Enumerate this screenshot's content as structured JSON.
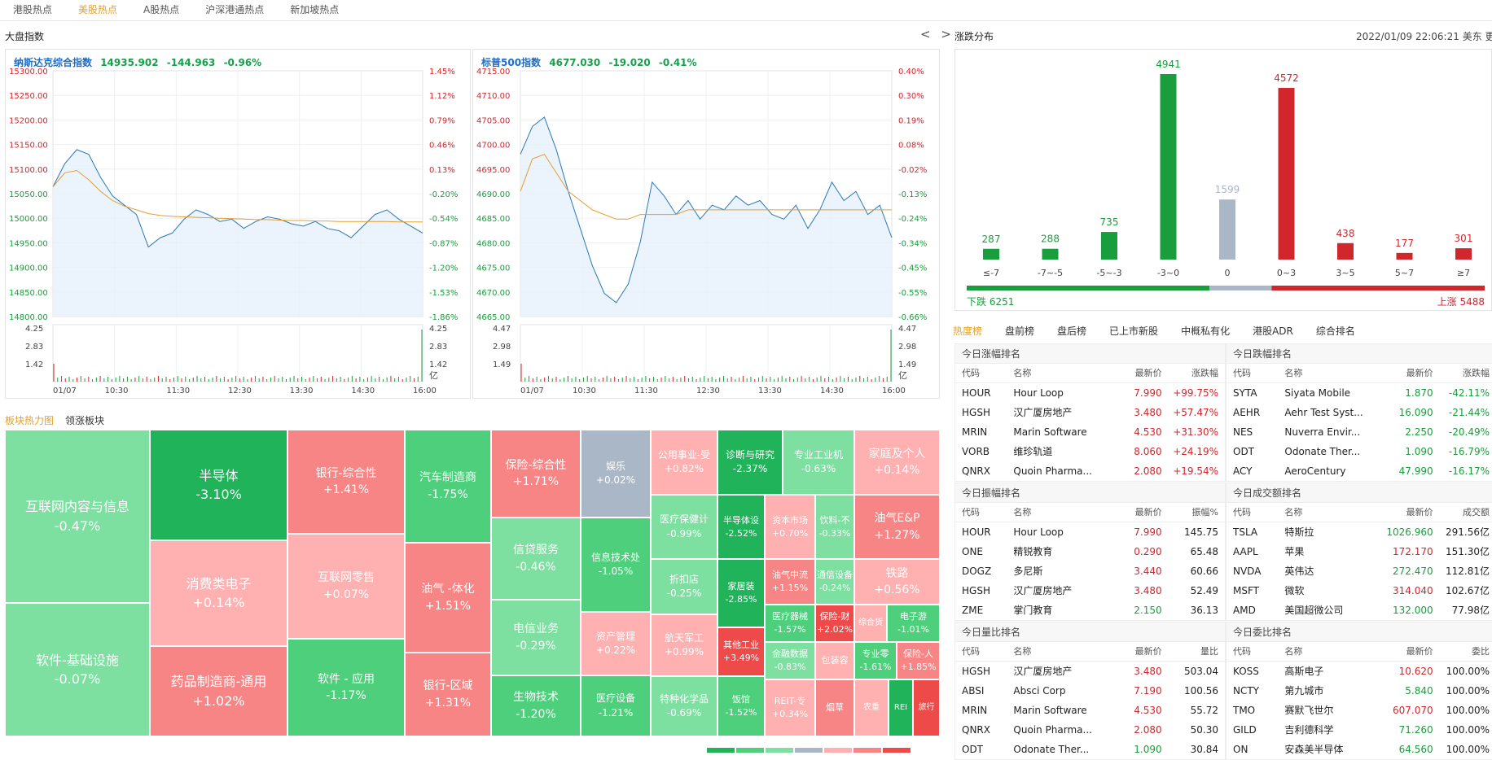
{
  "topnav": {
    "tabs": [
      "港股热点",
      "美股热点",
      "A股热点",
      "沪深港通热点",
      "新加坡热点"
    ],
    "active": 1
  },
  "index_panel": {
    "title": "大盘指数",
    "arrows": "< >"
  },
  "charts": [
    {
      "name": "纳斯达克综合指数",
      "value": "14935.902",
      "change": "-144.963",
      "pct": "-0.96%",
      "y_ticks": [
        "15300.00",
        "15250.00",
        "15200.00",
        "15150.00",
        "15100.00",
        "15050.00",
        "15000.00",
        "14950.00",
        "14900.00",
        "14850.00",
        "14800.00"
      ],
      "pct_ticks": [
        "1.45%",
        "1.12%",
        "0.79%",
        "0.46%",
        "0.13%",
        "-0.20%",
        "-0.54%",
        "-0.87%",
        "-1.20%",
        "-1.53%",
        "-1.86%"
      ],
      "vol_ticks": [
        "4.25",
        "2.83",
        "1.42"
      ],
      "vol_unit": "亿",
      "x_ticks": [
        "01/07",
        "10:30",
        "11:30",
        "12:30",
        "13:30",
        "14:30",
        "16:00"
      ],
      "ylim": [
        14780,
        15310
      ],
      "price": [
        15060,
        15110,
        15140,
        15130,
        15080,
        15040,
        15020,
        15000,
        14930,
        14950,
        14960,
        14990,
        15010,
        15000,
        14985,
        14990,
        14970,
        14985,
        14995,
        14990,
        14980,
        14975,
        14985,
        14970,
        14965,
        14950,
        14975,
        15000,
        15010,
        14990,
        14975,
        14960
      ],
      "avg": [
        15060,
        15090,
        15095,
        15075,
        15050,
        15030,
        15018,
        15010,
        15002,
        14998,
        14996,
        14995,
        14994,
        14993,
        14992,
        14991,
        14990,
        14989,
        14989,
        14988,
        14987,
        14987,
        14986,
        14986,
        14985,
        14985,
        14985,
        14985,
        14985,
        14984,
        14984,
        14984
      ]
    },
    {
      "name": "标普500指数",
      "value": "4677.030",
      "change": "-19.020",
      "pct": "-0.41%",
      "y_ticks": [
        "4715.00",
        "4710.00",
        "4705.00",
        "4700.00",
        "4695.00",
        "4690.00",
        "4685.00",
        "4680.00",
        "4675.00",
        "4670.00",
        "4665.00"
      ],
      "pct_ticks": [
        "0.40%",
        "0.30%",
        "0.19%",
        "0.08%",
        "-0.02%",
        "-0.13%",
        "-0.24%",
        "-0.34%",
        "-0.45%",
        "-0.55%",
        "-0.66%"
      ],
      "vol_ticks": [
        "4.47",
        "2.98",
        "1.49"
      ],
      "vol_unit": "亿",
      "x_ticks": [
        "01/07",
        "10:30",
        "11:30",
        "12:30",
        "13:30",
        "14:30",
        "16:00"
      ],
      "ylim": [
        4663,
        4716
      ],
      "price": [
        4698,
        4704,
        4706,
        4699,
        4690,
        4682,
        4674,
        4668,
        4666,
        4670,
        4679,
        4692,
        4689,
        4685,
        4688,
        4684,
        4687,
        4686,
        4689,
        4687,
        4688,
        4685,
        4684,
        4687,
        4682,
        4686,
        4692,
        4688,
        4690,
        4685,
        4687,
        4680
      ],
      "avg": [
        4690,
        4697,
        4698,
        4694,
        4690,
        4688,
        4686,
        4685,
        4684,
        4684,
        4685,
        4685,
        4685,
        4685,
        4686,
        4686,
        4686,
        4686,
        4686,
        4686,
        4686,
        4686,
        4686,
        4686,
        4686,
        4686,
        4686,
        4686,
        4686,
        4686,
        4686,
        4686
      ]
    }
  ],
  "dist": {
    "title": "涨跌分布",
    "time": "2022/01/09 22:06:21 美东 更新",
    "chart_data": {
      "type": "bar",
      "categories": [
        "≤-7",
        "-7~-5",
        "-5~-3",
        "-3~0",
        "0",
        "0~3",
        "3~5",
        "5~7",
        "≥7"
      ],
      "values": [
        287,
        288,
        735,
        4941,
        1599,
        4572,
        438,
        177,
        301
      ]
    },
    "down_label": "下跌 6251",
    "up_label": "上涨 5488",
    "down_count": 6251,
    "flat_count": 1599,
    "up_count": 5488
  },
  "rank_tabs": {
    "tabs": [
      "热度榜",
      "盘前榜",
      "盘后榜",
      "已上市新股",
      "中概私有化",
      "港股ADR",
      "综合排名"
    ],
    "active": 0
  },
  "tables": [
    {
      "title": "今日涨幅排名",
      "cols": [
        "代码",
        "名称",
        "最新价",
        "涨跌幅"
      ],
      "rows": [
        [
          "HOUR",
          "Hour Loop",
          "7.990",
          "+99.75%"
        ],
        [
          "HGSH",
          "汉广厦房地产",
          "3.480",
          "+57.47%"
        ],
        [
          "MRIN",
          "Marin Software",
          "4.530",
          "+31.30%"
        ],
        [
          "VORB",
          "维珍轨道",
          "8.060",
          "+24.19%"
        ],
        [
          "QNRX",
          "Quoin Pharma...",
          "2.080",
          "+19.54%"
        ]
      ],
      "price_color": "up",
      "last_color": "up"
    },
    {
      "title": "今日跌幅排名",
      "cols": [
        "代码",
        "名称",
        "最新价",
        "涨跌幅"
      ],
      "rows": [
        [
          "SYTA",
          "Siyata Mobile",
          "1.870",
          "-42.11%"
        ],
        [
          "AEHR",
          "Aehr Test Syst...",
          "16.090",
          "-21.44%"
        ],
        [
          "NES",
          "Nuverra Envir...",
          "2.250",
          "-20.49%"
        ],
        [
          "ODT",
          "Odonate Ther...",
          "1.090",
          "-16.79%"
        ],
        [
          "ACY",
          "AeroCentury",
          "47.990",
          "-16.17%"
        ]
      ],
      "price_color": "dn",
      "last_color": "dn"
    },
    {
      "title": "今日振幅排名",
      "cols": [
        "代码",
        "名称",
        "最新价",
        "振幅%"
      ],
      "rows": [
        [
          "HOUR",
          "Hour Loop",
          "7.990",
          "145.75"
        ],
        [
          "ONE",
          "精锐教育",
          "0.290",
          "65.48"
        ],
        [
          "DOGZ",
          "多尼斯",
          "3.440",
          "60.66"
        ],
        [
          "HGSH",
          "汉广厦房地产",
          "3.480",
          "52.49"
        ],
        [
          "ZME",
          "掌门教育",
          "2.150",
          "36.13"
        ]
      ],
      "price_colors": [
        "up",
        "up",
        "up",
        "up",
        "dn"
      ],
      "last_color": ""
    },
    {
      "title": "今日成交额排名",
      "cols": [
        "代码",
        "名称",
        "最新价",
        "成交额"
      ],
      "rows": [
        [
          "TSLA",
          "特斯拉",
          "1026.960",
          "291.56亿"
        ],
        [
          "AAPL",
          "苹果",
          "172.170",
          "151.30亿"
        ],
        [
          "NVDA",
          "英伟达",
          "272.470",
          "112.81亿"
        ],
        [
          "MSFT",
          "微软",
          "314.040",
          "102.67亿"
        ],
        [
          "AMD",
          "美国超微公司",
          "132.000",
          "77.98亿"
        ]
      ],
      "price_colors": [
        "dn",
        "up",
        "dn",
        "up",
        "dn"
      ],
      "last_color": ""
    },
    {
      "title": "今日量比排名",
      "cols": [
        "代码",
        "名称",
        "最新价",
        "量比"
      ],
      "rows": [
        [
          "HGSH",
          "汉广厦房地产",
          "3.480",
          "503.04"
        ],
        [
          "ABSI",
          "Absci Corp",
          "7.190",
          "100.56"
        ],
        [
          "MRIN",
          "Marin Software",
          "4.530",
          "55.72"
        ],
        [
          "QNRX",
          "Quoin Pharma...",
          "2.080",
          "50.30"
        ],
        [
          "ODT",
          "Odonate Ther...",
          "1.090",
          "30.84"
        ]
      ],
      "price_colors": [
        "up",
        "up",
        "up",
        "up",
        "dn"
      ],
      "last_color": ""
    },
    {
      "title": "今日委比排名",
      "cols": [
        "代码",
        "名称",
        "最新价",
        "委比"
      ],
      "rows": [
        [
          "KOSS",
          "高斯电子",
          "10.620",
          "100.00%"
        ],
        [
          "NCTY",
          "第九城市",
          "5.840",
          "100.00%"
        ],
        [
          "TMO",
          "赛默飞世尔",
          "607.070",
          "100.00%"
        ],
        [
          "GILD",
          "吉利德科学",
          "71.260",
          "100.00%"
        ],
        [
          "ON",
          "安森美半导体",
          "64.560",
          "100.00%"
        ]
      ],
      "price_colors": [
        "up",
        "dn",
        "up",
        "dn",
        "dn"
      ],
      "last_color": ""
    }
  ],
  "treemap": {
    "tabs": [
      "板块热力图",
      "领涨板块"
    ],
    "active": 0,
    "tiles": [
      {
        "n": "互联网内容与信息",
        "p": "-0.47%",
        "c": "#7ddfa0"
      },
      {
        "n": "软件-基础设施",
        "p": "-0.07%",
        "c": "#7ddfa0"
      },
      {
        "n": "半导体",
        "p": "-3.10%",
        "c": "#20b35a"
      },
      {
        "n": "消费类电子",
        "p": "+0.14%",
        "c": "#ffb0b0"
      },
      {
        "n": "药品制造商-通用",
        "p": "+1.02%",
        "c": "#f78585"
      },
      {
        "n": "银行-综合性",
        "p": "+1.41%",
        "c": "#f78585"
      },
      {
        "n": "互联网零售",
        "p": "+0.07%",
        "c": "#ffb0b0"
      },
      {
        "n": "软件 - 应用",
        "p": "-1.17%",
        "c": "#4dcf7c"
      },
      {
        "n": "汽车制造商",
        "p": "-1.75%",
        "c": "#4dcf7c"
      },
      {
        "n": "油气 -体化",
        "p": "+1.51%",
        "c": "#f78585"
      },
      {
        "n": "银行-区域",
        "p": "+1.31%",
        "c": "#f78585"
      },
      {
        "n": "保险-综合性",
        "p": "+1.71%",
        "c": "#f78585"
      },
      {
        "n": "信贷服务",
        "p": "-0.46%",
        "c": "#7ddfa0"
      },
      {
        "n": "电信业务",
        "p": "-0.29%",
        "c": "#7ddfa0"
      },
      {
        "n": "生物技术",
        "p": "-1.20%",
        "c": "#4dcf7c"
      },
      {
        "n": "娱乐",
        "p": "+0.02%",
        "c": "#a9b7c6"
      },
      {
        "n": "信息技术处",
        "p": "-1.05%",
        "c": "#4dcf7c"
      },
      {
        "n": "资产管理",
        "p": "+0.22%",
        "c": "#ffb0b0"
      },
      {
        "n": "医疗设备",
        "p": "-1.21%",
        "c": "#4dcf7c"
      },
      {
        "n": "公用事业-受",
        "p": "+0.82%",
        "c": "#ffb0b0"
      },
      {
        "n": "诊断与研究",
        "p": "-2.37%",
        "c": "#20b35a"
      },
      {
        "n": "专业工业机",
        "p": "-0.63%",
        "c": "#7ddfa0"
      },
      {
        "n": "家庭及个人",
        "p": "+0.14%",
        "c": "#ffb0b0"
      },
      {
        "n": "医疗保健计",
        "p": "-0.99%",
        "c": "#7ddfa0"
      },
      {
        "n": "半导体设",
        "p": "-2.52%",
        "c": "#20b35a"
      },
      {
        "n": "资本市场",
        "p": "+0.70%",
        "c": "#ffb0b0"
      },
      {
        "n": "饮料-不",
        "p": "-0.33%",
        "c": "#7ddfa0"
      },
      {
        "n": "油气E&P",
        "p": "+1.27%",
        "c": "#f78585"
      },
      {
        "n": "折扣店",
        "p": "-0.25%",
        "c": "#7ddfa0"
      },
      {
        "n": "家居装",
        "p": "-2.85%",
        "c": "#20b35a"
      },
      {
        "n": "油气中流",
        "p": "+1.15%",
        "c": "#f78585"
      },
      {
        "n": "通信设备",
        "p": "-0.24%",
        "c": "#7ddfa0"
      },
      {
        "n": "铁路",
        "p": "+0.56%",
        "c": "#ffb0b0"
      },
      {
        "n": "航天军工",
        "p": "+0.99%",
        "c": "#ffb0b0"
      },
      {
        "n": "其他工业",
        "p": "+3.49%",
        "c": "#ee4a4a"
      },
      {
        "n": "医疗器械",
        "p": "-1.57%",
        "c": "#4dcf7c"
      },
      {
        "n": "保险-财",
        "p": "+2.02%",
        "c": "#ee4a4a"
      },
      {
        "n": "综合货",
        "p": "",
        "c": "#ffb0b0"
      },
      {
        "n": "电子游",
        "p": "-1.01%",
        "c": "#4dcf7c"
      },
      {
        "n": "特种化学品",
        "p": "-0.69%",
        "c": "#7ddfa0"
      },
      {
        "n": "饭馆",
        "p": "-1.52%",
        "c": "#4dcf7c"
      },
      {
        "n": "金融数据",
        "p": "-0.83%",
        "c": "#7ddfa0"
      },
      {
        "n": "包装容",
        "p": "",
        "c": "#ffb0b0"
      },
      {
        "n": "专业零",
        "p": "-1.61%",
        "c": "#4dcf7c"
      },
      {
        "n": "保险-人",
        "p": "+1.85%",
        "c": "#f78585"
      },
      {
        "n": "REIT-专",
        "p": "+0.34%",
        "c": "#ffb0b0"
      },
      {
        "n": "烟草",
        "p": "",
        "c": "#f78585"
      },
      {
        "n": "农重",
        "p": "",
        "c": "#ffb0b0"
      },
      {
        "n": "REI",
        "p": "",
        "c": "#20b35a"
      },
      {
        "n": "旅行",
        "p": "",
        "c": "#ee4a4a"
      }
    ]
  },
  "colors": {
    "up": "#d0262c",
    "down": "#1a9d3c",
    "flat": "#a9b7c6",
    "accent": "#e8a020",
    "line": "#2a78b8",
    "avg": "#e2a030"
  }
}
